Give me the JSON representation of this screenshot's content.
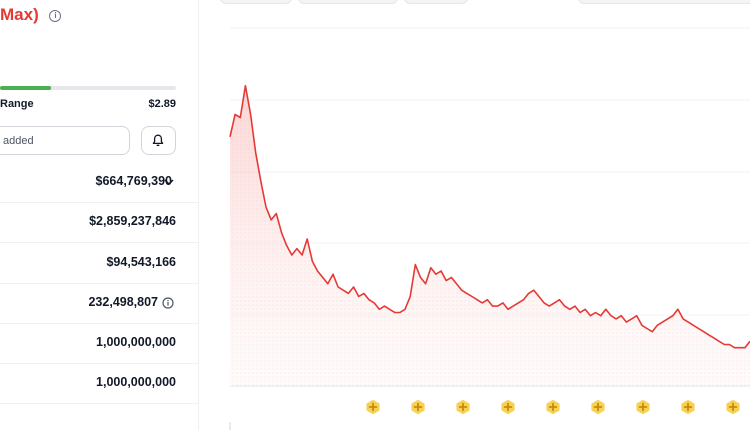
{
  "header": {
    "title": "Max)",
    "info_icon": "info-icon"
  },
  "range": {
    "label": "Range",
    "high": "$2.89",
    "fill_fraction": 0.29,
    "fill_color": "#4caf50"
  },
  "alert": {
    "placeholder": "added",
    "bell_icon": "bell-icon"
  },
  "stats": [
    {
      "value": "$664,769,390",
      "icon": "chevron-down-icon"
    },
    {
      "value": "$2,859,237,846"
    },
    {
      "value": "$94,543,166"
    },
    {
      "value": "232,498,807",
      "icon": "info-icon"
    },
    {
      "value": "1,000,000,000"
    },
    {
      "value": "1,000,000,000"
    }
  ],
  "chart_data": {
    "type": "area",
    "line_color": "#e53935",
    "fill_color": "#fde2e1",
    "gridlines": true,
    "series": [
      {
        "values": [
          78,
          85,
          84,
          94,
          85,
          73,
          64,
          56,
          52,
          54,
          48,
          44,
          41,
          43,
          41,
          46,
          39,
          36,
          34,
          32,
          35,
          31,
          30,
          29,
          31,
          28,
          29,
          27,
          26,
          24,
          25,
          24,
          23,
          23,
          24,
          28,
          38,
          34,
          32,
          37,
          35,
          36,
          33,
          34,
          32,
          30,
          29,
          28,
          27,
          26,
          27,
          25,
          25,
          26,
          24,
          25,
          26,
          27,
          29,
          30,
          28,
          26,
          25,
          26,
          27,
          25,
          24,
          25,
          23,
          24,
          22,
          23,
          22,
          24,
          22,
          21,
          22,
          20,
          21,
          22,
          19,
          18,
          17,
          19,
          20,
          21,
          22,
          24,
          21,
          20,
          19,
          18,
          17,
          16,
          15,
          14,
          13,
          13,
          12,
          12,
          12,
          14
        ]
      }
    ],
    "events_count": 9,
    "event_icon": "event-star-icon"
  }
}
